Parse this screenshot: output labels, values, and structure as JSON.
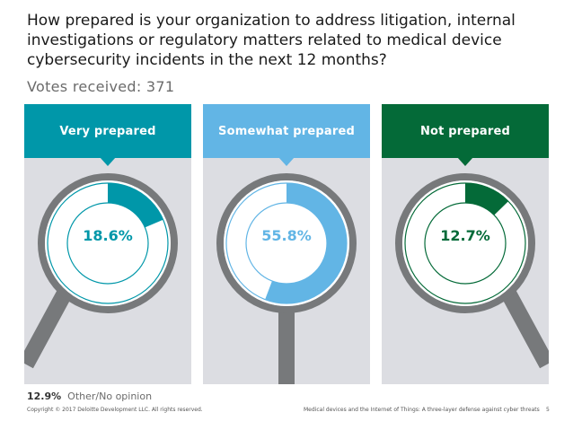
{
  "question": "How prepared is your organization to address litigation, internal investigations or regulatory matters related to medical device cybersecurity incidents in the next 12 months?",
  "votes": "Votes received: 371",
  "colors": {
    "panel_bg": "#dcdde2",
    "handle": "#77797b",
    "ring_bg": "#ffffff"
  },
  "chart_data": {
    "type": "pie",
    "categories": [
      "Very prepared",
      "Somewhat prepared",
      "Not prepared"
    ],
    "values": [
      18.6,
      55.8,
      12.7
    ],
    "value_labels": [
      "18.6%",
      "55.8%",
      "12.7%"
    ],
    "colors": [
      "#0097a9",
      "#62b5e5",
      "#046a38"
    ],
    "other": {
      "value": 12.9,
      "label_value": "12.9%",
      "label": "Other/No opinion"
    }
  },
  "footer": {
    "copyright": "Copyright © 2017 Deloitte Development LLC. All rights reserved.",
    "source": "Medical devices and the Internet of Things: A three-layer defense against cyber threats",
    "page": "5"
  }
}
